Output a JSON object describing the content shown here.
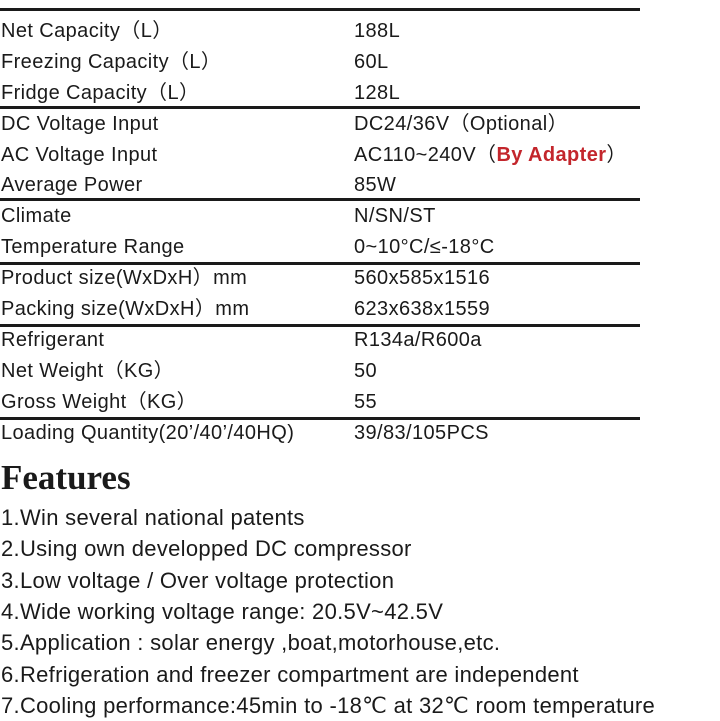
{
  "specs": [
    {
      "label": "Net Capacity（L）",
      "value": "188L"
    },
    {
      "label": "Freezing Capacity（L）",
      "value": "60L"
    },
    {
      "label": "Fridge  Capacity（L）",
      "value": "128L"
    },
    {
      "label": "DC  Voltage Input",
      "value": "DC24/36V（Optional）"
    },
    {
      "label": "AC  Voltage Input",
      "value": "AC110~240V（",
      "value_highlight": "By Adapter",
      "value_suffix": "）"
    },
    {
      "label": "Average  Power",
      "value": "85W"
    },
    {
      "label": "Climate",
      "value": "N/SN/ST"
    },
    {
      "label": "Temperature  Range",
      "value": "0~10°C/≤-18°C"
    },
    {
      "label": "Product size(WxDxH）mm",
      "value": "560x585x1516"
    },
    {
      "label": "Packing  size(WxDxH）mm",
      "value": "623x638x1559"
    },
    {
      "label": "Refrigerant",
      "value": "R134a/R600a"
    },
    {
      "label": "Net  Weight（KG）",
      "value": "50"
    },
    {
      "label": "Gross  Weight（KG）",
      "value": "55"
    },
    {
      "label": "Loading  Quantity(20’/40’/40HQ)",
      "value": "39/83/105PCS"
    }
  ],
  "features": {
    "title": "Features",
    "items": [
      "1.Win several national patents",
      "2.Using  own  developped DC compressor",
      "3.Low voltage / Over voltage protection",
      "4.Wide working voltage range: 20.5V~42.5V",
      "5.Application : solar energy ,boat,motorhouse,etc.",
      "6.Refrigeration and freezer compartment are independent",
      "7.Cooling performance:45min to -18℃ at 32℃ room temperature"
    ]
  },
  "colors": {
    "highlight": "#c3262c",
    "text": "#1a1a1a"
  }
}
